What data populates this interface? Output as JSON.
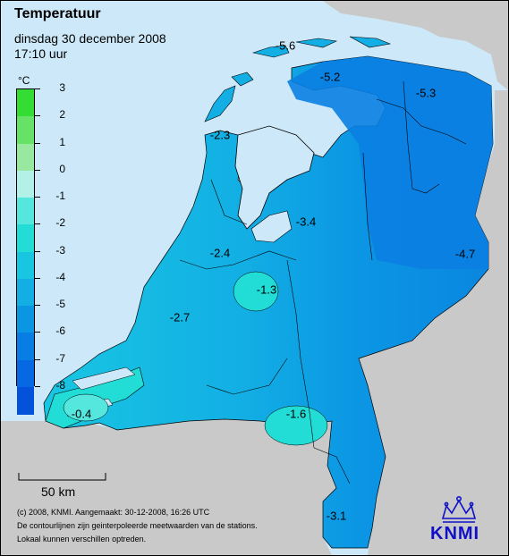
{
  "title": "Temperatuur",
  "date": "dinsdag 30 december 2008",
  "time": "17:10 uur",
  "legend": {
    "unit": "°C",
    "ticks": [
      "3",
      "2",
      "1",
      "0",
      "-1",
      "-2",
      "-3",
      "-4",
      "-5",
      "-6",
      "-7",
      "-8"
    ],
    "colors": [
      "#33dd33",
      "#66e266",
      "#99e8a0",
      "#b2f0e8",
      "#55e6dd",
      "#22dcd6",
      "#19c6e2",
      "#12aee4",
      "#0b96e4",
      "#087ee4",
      "#0668e2",
      "#0552da"
    ]
  },
  "isotherm_labels": [
    "-5.6",
    "-5.2",
    "-5.3",
    "-2.3",
    "-3.4",
    "-4.7",
    "-2.4",
    "-1.3",
    "-2.7",
    "-0.4",
    "-1.6",
    "-3.1"
  ],
  "scale": {
    "label": "50 km"
  },
  "footer": {
    "line1": "(c) 2008, KNMI. Aangemaakt: 30-12-2008, 16:26 UTC",
    "line2": "De contourlijnen zijn geinterpoleerde meetwaarden van de stations.",
    "line3": "Lokaal kunnen verschillen optreden."
  },
  "logo": {
    "text": "KNMI"
  }
}
